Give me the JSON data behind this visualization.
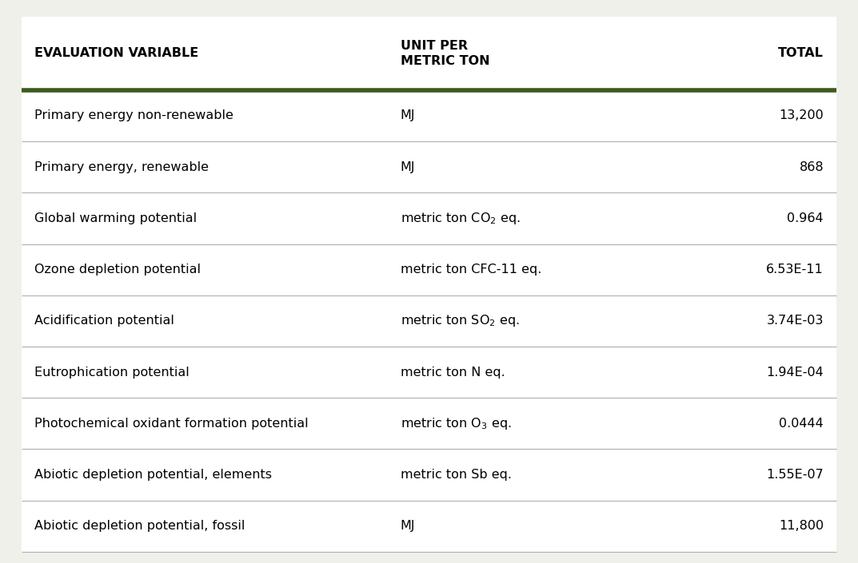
{
  "background_color": "#f0f0eb",
  "table_bg": "#ffffff",
  "header_line_color": "#3d5a1e",
  "row_line_color": "#b0b0b0",
  "header_col1": "EVALUATION VARIABLE",
  "header_col2": "UNIT PER\nMETRIC TON",
  "header_col3": "TOTAL",
  "rows": [
    {
      "col1": "Primary energy non-renewable",
      "col2_plain": "MJ",
      "col2_sub": "",
      "col2_after": "",
      "col3": "13,200"
    },
    {
      "col1": "Primary energy, renewable",
      "col2_plain": "MJ",
      "col2_sub": "",
      "col2_after": "",
      "col3": "868"
    },
    {
      "col1": "Global warming potential",
      "col2_plain": "metric ton CO",
      "col2_sub": "2",
      "col2_after": " eq.",
      "col3": "0.964"
    },
    {
      "col1": "Ozone depletion potential",
      "col2_plain": "metric ton CFC-11 eq.",
      "col2_sub": "",
      "col2_after": "",
      "col3": "6.53E-11"
    },
    {
      "col1": "Acidification potential",
      "col2_plain": "metric ton SO",
      "col2_sub": "2",
      "col2_after": " eq.",
      "col3": "3.74E-03"
    },
    {
      "col1": "Eutrophication potential",
      "col2_plain": "metric ton N eq.",
      "col2_sub": "",
      "col2_after": "",
      "col3": "1.94E-04"
    },
    {
      "col1": "Photochemical oxidant formation potential",
      "col2_plain": "metric ton O",
      "col2_sub": "3",
      "col2_after": " eq.",
      "col3": "0.0444"
    },
    {
      "col1": "Abiotic depletion potential, elements",
      "col2_plain": "metric ton Sb eq.",
      "col2_sub": "",
      "col2_after": "",
      "col3": "1.55E-07"
    },
    {
      "col1": "Abiotic depletion potential, fossil",
      "col2_plain": "MJ",
      "col2_sub": "",
      "col2_after": "",
      "col3": "11,800"
    }
  ],
  "header_fontsize": 11.5,
  "data_fontsize": 11.5,
  "font_family": "DejaVu Sans"
}
